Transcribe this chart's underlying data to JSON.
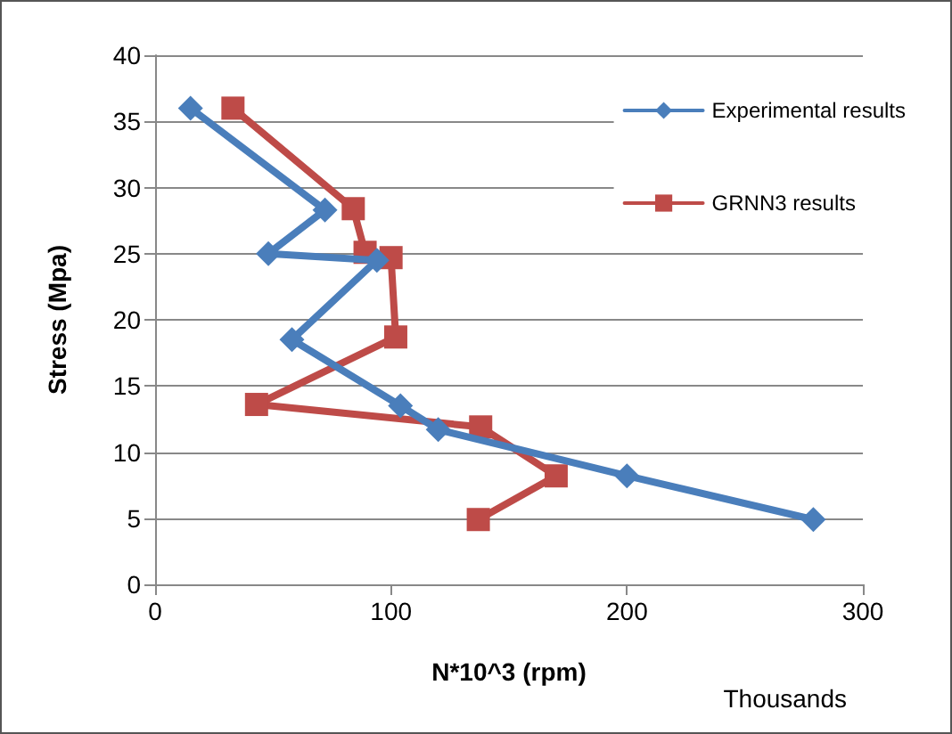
{
  "chart_data": {
    "type": "line",
    "xlabel": "N*10^3 (rpm)",
    "ylabel": "Stress (Mpa)",
    "annotations": [
      "Thousands"
    ],
    "xlim": [
      0,
      300
    ],
    "xticks": [
      0,
      100,
      200,
      300
    ],
    "ylim": [
      0,
      40
    ],
    "yticks": [
      0,
      5,
      10,
      15,
      20,
      25,
      30,
      35,
      40
    ],
    "grid": "y",
    "legend": "right",
    "line_style": "solid",
    "series": [
      {
        "name": "Experimental results",
        "color": "#4a7ebb",
        "marker": "diamond",
        "x": [
          15,
          72,
          48,
          94,
          58,
          104,
          120,
          200,
          279
        ],
        "values": [
          36,
          28.3,
          25,
          24.5,
          18.5,
          13.5,
          11.7,
          8.2,
          4.9
        ]
      },
      {
        "name": "GRNN3 results",
        "color": "#be4b48",
        "marker": "square",
        "x": [
          33,
          84,
          89,
          100,
          102,
          43,
          138,
          170,
          137
        ],
        "values": [
          36,
          28.4,
          25.1,
          24.7,
          18.7,
          13.6,
          11.9,
          8.2,
          4.9
        ]
      }
    ]
  }
}
